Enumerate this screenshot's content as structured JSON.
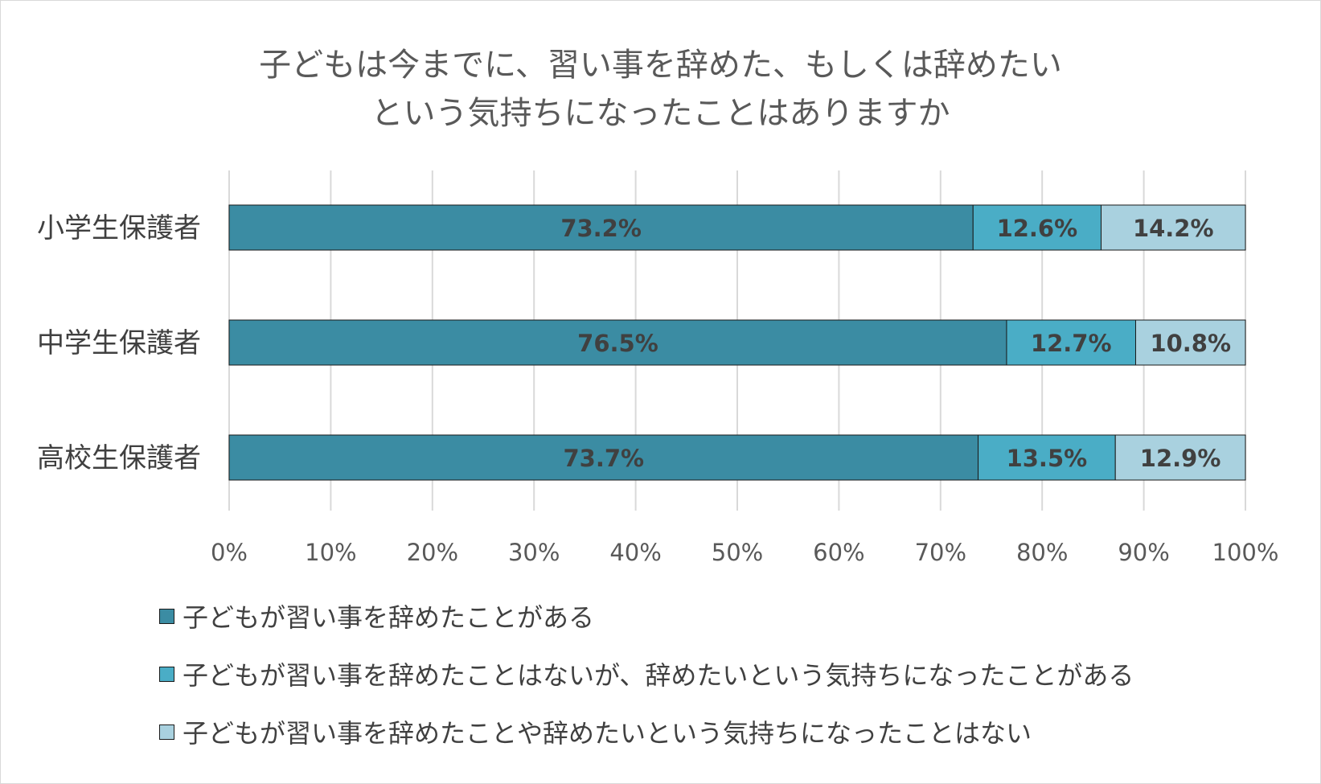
{
  "chart_data": {
    "type": "bar",
    "orientation": "horizontal",
    "stacked": "percent",
    "title": [
      "子どもは今までに、習い事を辞めた、もしくは辞めたい",
      "という気持ちになったことはありますか"
    ],
    "categories": [
      "小学生保護者",
      "中学生保護者",
      "高校生保護者"
    ],
    "series": [
      {
        "name": "子どもが習い事を辞めたことがある",
        "values": [
          73.2,
          76.5,
          73.7
        ],
        "labels": [
          "73.2%",
          "76.5%",
          "73.7%"
        ],
        "color": "#3b8ca3"
      },
      {
        "name": "子どもが習い事を辞めたことはないが、辞めたいという気持ちになったことがある",
        "values": [
          12.6,
          12.7,
          13.5
        ],
        "labels": [
          "12.6%",
          "12.7%",
          "13.5%"
        ],
        "color": "#4aadc6"
      },
      {
        "name": "子どもが習い事を辞めたことや辞めたいという気持ちになったことはない",
        "values": [
          14.2,
          10.8,
          12.9
        ],
        "labels": [
          "14.2%",
          "10.8%",
          "12.9%"
        ],
        "color": "#a9d1df"
      }
    ],
    "xlim": [
      0,
      100
    ],
    "xticks": [
      "0%",
      "10%",
      "20%",
      "30%",
      "40%",
      "50%",
      "60%",
      "70%",
      "80%",
      "90%",
      "100%"
    ],
    "grid": true,
    "legend_position": "bottom"
  }
}
